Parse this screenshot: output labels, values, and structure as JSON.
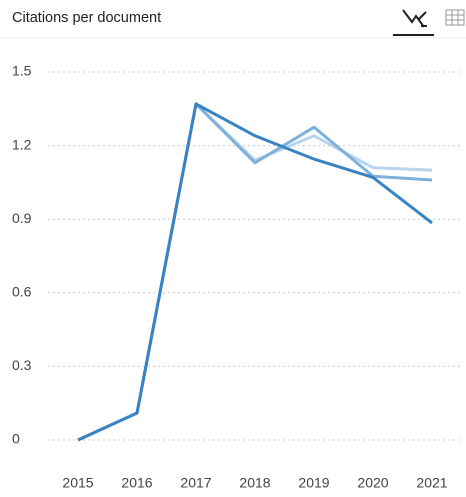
{
  "title": "Citations per document",
  "chart_data": {
    "type": "line",
    "categories": [
      "2015",
      "2016",
      "2017",
      "2018",
      "2019",
      "2020",
      "2021"
    ],
    "series": [
      {
        "color": "#b8d4ee",
        "values": [
          0,
          0.11,
          1.37,
          1.14,
          1.24,
          1.11,
          1.1
        ]
      },
      {
        "color": "#7eb0dc",
        "values": [
          0,
          0.11,
          1.37,
          1.13,
          1.275,
          1.075,
          1.06
        ]
      },
      {
        "color": "#3a83c2",
        "values": [
          0,
          0.11,
          1.37,
          1.24,
          1.145,
          1.07,
          0.885
        ]
      }
    ],
    "ylim": [
      0,
      1.5
    ],
    "yticks": [
      0,
      0.3,
      0.6,
      0.9,
      1.2,
      1.5
    ],
    "grid": true
  }
}
